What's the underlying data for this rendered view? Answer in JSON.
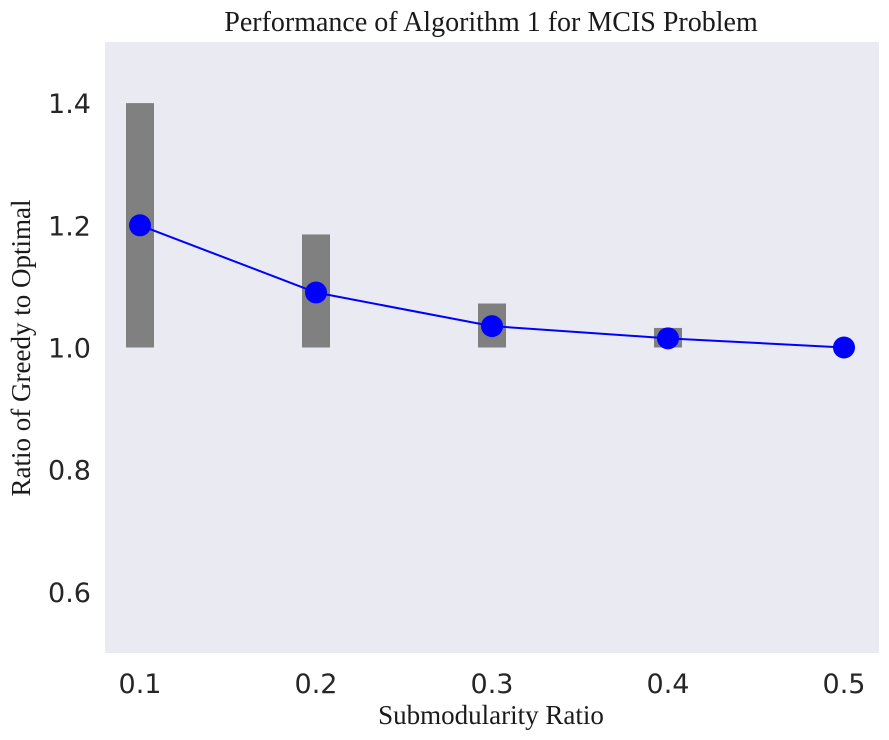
{
  "chart_data": {
    "type": "line",
    "title": "Performance of Algorithm 1 for MCIS Problem",
    "xlabel": "Submodularity Ratio",
    "ylabel": "Ratio of Greedy to Optimal",
    "x": [
      0.1,
      0.2,
      0.3,
      0.4,
      0.5
    ],
    "x_tick_labels": [
      "0.1",
      "0.2",
      "0.3",
      "0.4",
      "0.5"
    ],
    "y_ticks": [
      0.6,
      0.8,
      1.0,
      1.2,
      1.4
    ],
    "y_tick_labels": [
      "0.6",
      "0.8",
      "1.0",
      "1.2",
      "1.4"
    ],
    "ylim": [
      0.5,
      1.5
    ],
    "grid": false,
    "series": [
      {
        "values": [
          1.2,
          1.09,
          1.035,
          1.015,
          1.0
        ],
        "color": "#0000ff",
        "marker": "circle"
      }
    ],
    "ranges": {
      "low": [
        1.0,
        1.0,
        1.0,
        1.0,
        1.0
      ],
      "high": [
        1.4,
        1.185,
        1.072,
        1.032,
        1.0
      ],
      "color": "#808080"
    },
    "background_color": "#eaeaf2"
  }
}
